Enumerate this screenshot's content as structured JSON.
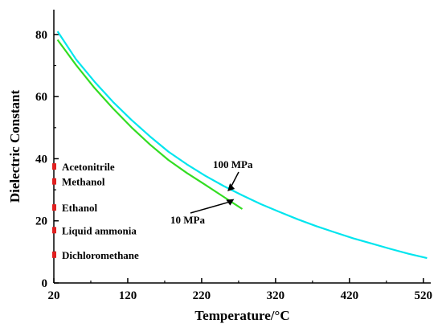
{
  "chart_data": {
    "type": "line",
    "xlabel": "Temperature/°C",
    "ylabel": "Dielectric Constant",
    "xlim": [
      20,
      530
    ],
    "ylim": [
      0,
      88
    ],
    "x_ticks": [
      20,
      120,
      220,
      320,
      420,
      520
    ],
    "y_ticks": [
      0,
      20,
      40,
      60,
      80
    ],
    "grid": false,
    "series": [
      {
        "name": "100 MPa",
        "color": "#00e5ee",
        "x": [
          25,
          50,
          75,
          100,
          125,
          150,
          175,
          200,
          225,
          250,
          275,
          300,
          325,
          350,
          375,
          400,
          425,
          450,
          475,
          500,
          525
        ],
        "y": [
          81,
          72,
          64.8,
          58.3,
          52.5,
          47.2,
          42.3,
          38.2,
          34.5,
          31.2,
          28.2,
          25.4,
          22.9,
          20.5,
          18.3,
          16.3,
          14.4,
          12.7,
          11.0,
          9.4,
          8.0
        ]
      },
      {
        "name": "10 MPa",
        "color": "#33dd22",
        "x": [
          25,
          50,
          75,
          100,
          125,
          150,
          175,
          200,
          225,
          250,
          275
        ],
        "y": [
          78.3,
          70.2,
          62.8,
          56.2,
          50.1,
          44.6,
          39.6,
          35.4,
          31.6,
          27.7,
          23.8
        ]
      }
    ],
    "annotations": [
      {
        "text": "100 MPa",
        "x": 255,
        "y": 29.5
      },
      {
        "text": "10 MPa",
        "x": 264,
        "y": 27
      }
    ],
    "solvents": [
      {
        "name": "Acetonitrile",
        "value": 37.5
      },
      {
        "name": "Methanol",
        "value": 32.7
      },
      {
        "name": "Ethanol",
        "value": 24.3
      },
      {
        "name": "Liquid ammonia",
        "value": 17
      },
      {
        "name": "Dichloromethane",
        "value": 9.1
      }
    ],
    "marker_color": "#e02020"
  }
}
